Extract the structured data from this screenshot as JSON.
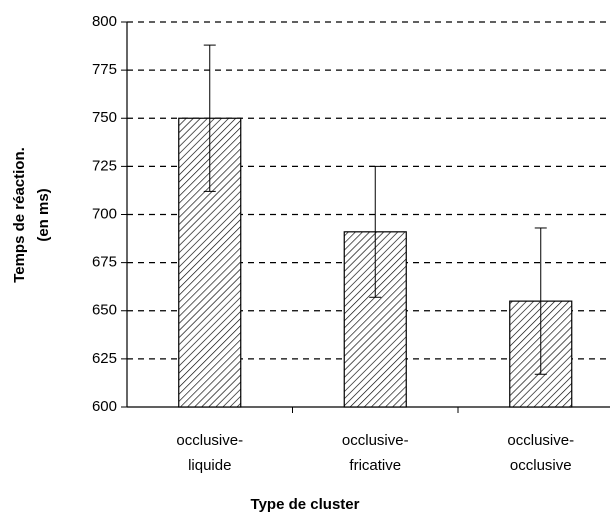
{
  "chart_data": {
    "type": "bar",
    "categories": [
      [
        "occlusive-",
        "liquide"
      ],
      [
        "occlusive-",
        "fricative"
      ],
      [
        "occlusive-",
        "occlusive"
      ]
    ],
    "values": [
      750,
      691,
      655
    ],
    "errors": [
      38,
      34,
      38
    ],
    "color": "#000000",
    "ylabel": [
      "Temps de réaction.",
      "(en ms)"
    ],
    "xlabel": "Type de cluster",
    "ylim": [
      600,
      800
    ],
    "yticks": [
      600,
      625,
      650,
      675,
      700,
      725,
      750,
      775,
      800
    ],
    "grid": true
  }
}
